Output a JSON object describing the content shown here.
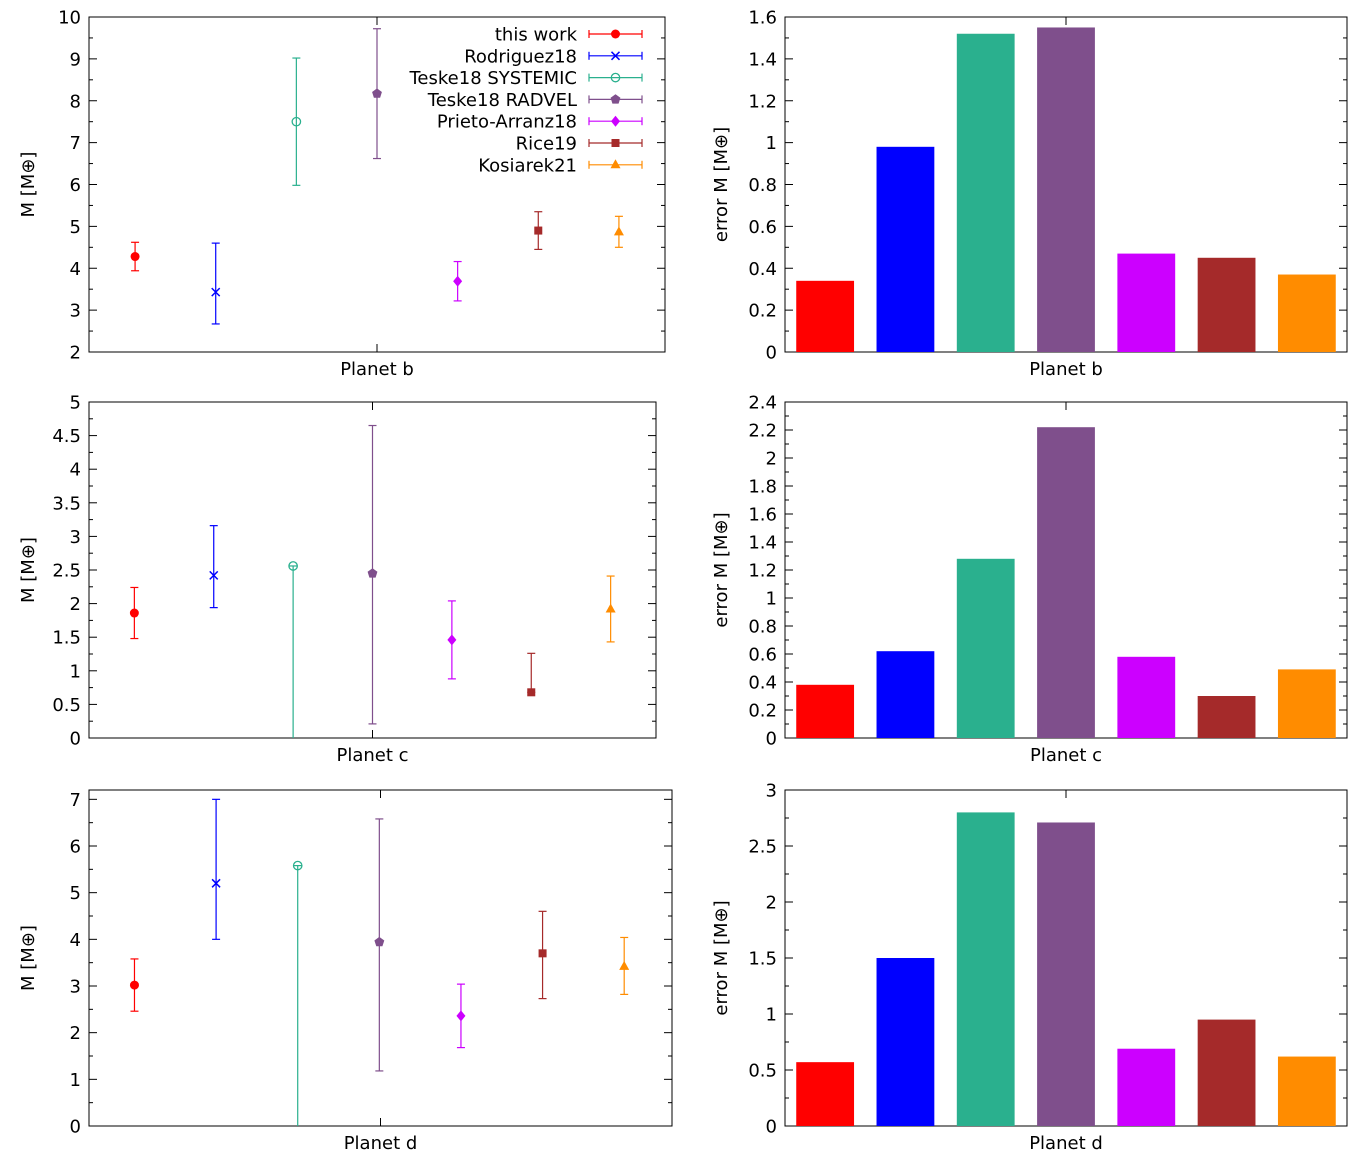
{
  "colors": {
    "this work": "#ff0000",
    "Rodriguez18": "#0000ff",
    "Teske18 SYSTEMIC": "#2ab08e",
    "Teske18 RADVEL": "#7f4f8c",
    "Prieto-Arranz18": "#cc00ff",
    "Rice19": "#a52a2a",
    "Kosiarek21": "#ff8c00"
  },
  "legend": [
    {
      "label": "this work",
      "marker": "filled-circle"
    },
    {
      "label": "Rodriguez18",
      "marker": "cross"
    },
    {
      "label": "Teske18 SYSTEMIC",
      "marker": "open-circle"
    },
    {
      "label": "Teske18 RADVEL",
      "marker": "filled-pentagon"
    },
    {
      "label": "Prieto-Arranz18",
      "marker": "filled-diamond"
    },
    {
      "label": "Rice19",
      "marker": "filled-square"
    },
    {
      "label": "Kosiarek21",
      "marker": "filled-triangle"
    }
  ],
  "chart_data": [
    {
      "type": "scatter",
      "panel": "mass-b",
      "xlabel": "Planet b",
      "ylabel": "M [M⊕]",
      "ylim": [
        2,
        10
      ],
      "yticks": [
        "2",
        "3",
        "4",
        "5",
        "6",
        "7",
        "8",
        "9",
        "10"
      ],
      "ytick_values": [
        2,
        3,
        4,
        5,
        6,
        7,
        8,
        9,
        10
      ],
      "show_legend": true,
      "series": [
        {
          "name": "this work",
          "value": 4.28,
          "low": 3.94,
          "high": 4.62
        },
        {
          "name": "Rodriguez18",
          "value": 3.43,
          "low": 2.67,
          "high": 4.6
        },
        {
          "name": "Teske18 SYSTEMIC",
          "value": 7.5,
          "low": 5.98,
          "high": 9.02
        },
        {
          "name": "Teske18 RADVEL",
          "value": 8.17,
          "low": 6.62,
          "high": 9.72
        },
        {
          "name": "Prieto-Arranz18",
          "value": 3.69,
          "low": 3.22,
          "high": 4.16
        },
        {
          "name": "Rice19",
          "value": 4.9,
          "low": 4.45,
          "high": 5.35
        },
        {
          "name": "Kosiarek21",
          "value": 4.87,
          "low": 4.5,
          "high": 5.24
        }
      ]
    },
    {
      "type": "bar",
      "panel": "error-b",
      "xlabel": "Planet b",
      "ylabel": "error M [M⊕]",
      "ylim": [
        0,
        1.6
      ],
      "yticks": [
        "0",
        "0.2",
        "0.4",
        "0.6",
        "0.8",
        "1",
        "1.2",
        "1.4",
        "1.6"
      ],
      "ytick_values": [
        0,
        0.2,
        0.4,
        0.6,
        0.8,
        1,
        1.2,
        1.4,
        1.6
      ],
      "categories": [
        "this work",
        "Rodriguez18",
        "Teske18 SYSTEMIC",
        "Teske18 RADVEL",
        "Prieto-Arranz18",
        "Rice19",
        "Kosiarek21"
      ],
      "values": [
        0.34,
        0.98,
        1.52,
        1.55,
        0.47,
        0.45,
        0.37
      ]
    },
    {
      "type": "scatter",
      "panel": "mass-c",
      "xlabel": "Planet c",
      "ylabel": "M [M⊕]",
      "ylim": [
        0,
        5
      ],
      "yticks": [
        "0",
        "0.5",
        "1",
        "1.5",
        "2",
        "2.5",
        "3",
        "3.5",
        "4",
        "4.5",
        "5"
      ],
      "ytick_values": [
        0,
        0.5,
        1,
        1.5,
        2,
        2.5,
        3,
        3.5,
        4,
        4.5,
        5
      ],
      "show_legend": false,
      "series": [
        {
          "name": "this work",
          "value": 1.86,
          "low": 1.48,
          "high": 2.24
        },
        {
          "name": "Rodriguez18",
          "value": 2.42,
          "low": 1.94,
          "high": 3.16
        },
        {
          "name": "Teske18 SYSTEMIC",
          "value": 2.56,
          "low": 0,
          "high": 2.56
        },
        {
          "name": "Teske18 RADVEL",
          "value": 2.45,
          "low": 0.21,
          "high": 4.65
        },
        {
          "name": "Prieto-Arranz18",
          "value": 1.46,
          "low": 0.88,
          "high": 2.04
        },
        {
          "name": "Rice19",
          "value": 0.68,
          "low": 0.68,
          "high": 1.26
        },
        {
          "name": "Kosiarek21",
          "value": 1.92,
          "low": 1.43,
          "high": 2.41
        }
      ]
    },
    {
      "type": "bar",
      "panel": "error-c",
      "xlabel": "Planet c",
      "ylabel": "error M [M⊕]",
      "ylim": [
        0,
        2.4
      ],
      "yticks": [
        "0",
        "0.2",
        "0.4",
        "0.6",
        "0.8",
        "1",
        "1.2",
        "1.4",
        "1.6",
        "1.8",
        "2",
        "2.2",
        "2.4"
      ],
      "ytick_values": [
        0,
        0.2,
        0.4,
        0.6,
        0.8,
        1,
        1.2,
        1.4,
        1.6,
        1.8,
        2,
        2.2,
        2.4
      ],
      "categories": [
        "this work",
        "Rodriguez18",
        "Teske18 SYSTEMIC",
        "Teske18 RADVEL",
        "Prieto-Arranz18",
        "Rice19",
        "Kosiarek21"
      ],
      "values": [
        0.38,
        0.62,
        1.28,
        2.22,
        0.58,
        0.3,
        0.49
      ]
    },
    {
      "type": "scatter",
      "panel": "mass-d",
      "xlabel": "Planet d",
      "ylabel": "M [M⊕]",
      "ylim": [
        0,
        7.2
      ],
      "yticks": [
        "0",
        "1",
        "2",
        "3",
        "4",
        "5",
        "6",
        "7"
      ],
      "ytick_values": [
        0,
        1,
        2,
        3,
        4,
        5,
        6,
        7
      ],
      "show_legend": false,
      "series": [
        {
          "name": "this work",
          "value": 3.02,
          "low": 2.46,
          "high": 3.58
        },
        {
          "name": "Rodriguez18",
          "value": 5.2,
          "low": 4.0,
          "high": 7.0
        },
        {
          "name": "Teske18 SYSTEMIC",
          "value": 5.58,
          "low": 0,
          "high": 5.58
        },
        {
          "name": "Teske18 RADVEL",
          "value": 3.94,
          "low": 1.18,
          "high": 6.58
        },
        {
          "name": "Prieto-Arranz18",
          "value": 2.36,
          "low": 1.68,
          "high": 3.04
        },
        {
          "name": "Rice19",
          "value": 3.7,
          "low": 2.73,
          "high": 4.6
        },
        {
          "name": "Kosiarek21",
          "value": 3.42,
          "low": 2.82,
          "high": 4.04
        }
      ]
    },
    {
      "type": "bar",
      "panel": "error-d",
      "xlabel": "Planet d",
      "ylabel": "error M [M⊕]",
      "ylim": [
        0,
        3
      ],
      "yticks": [
        "0",
        "0.5",
        "1",
        "1.5",
        "2",
        "2.5",
        "3"
      ],
      "ytick_values": [
        0,
        0.5,
        1,
        1.5,
        2,
        2.5,
        3
      ],
      "categories": [
        "this work",
        "Rodriguez18",
        "Teske18 SYSTEMIC",
        "Teske18 RADVEL",
        "Prieto-Arranz18",
        "Rice19",
        "Kosiarek21"
      ],
      "values": [
        0.57,
        1.5,
        2.8,
        2.71,
        0.69,
        0.95,
        0.62
      ]
    }
  ]
}
